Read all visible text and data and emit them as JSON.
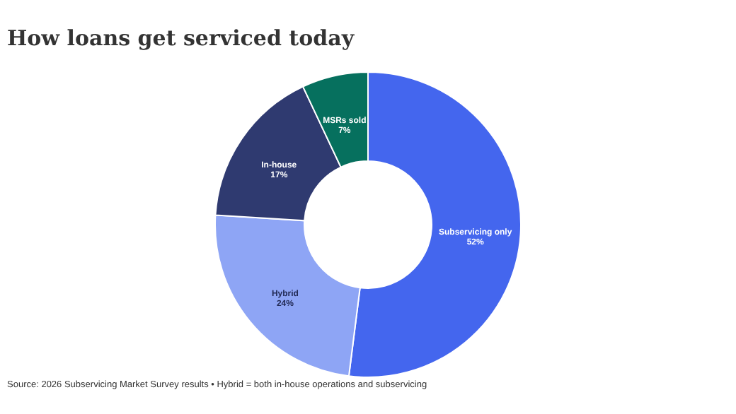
{
  "chart_data": {
    "type": "donut",
    "title": "How loans get serviced today",
    "categories": [
      "Subservicing only",
      "Hybrid",
      "In-house",
      "MSRs sold"
    ],
    "values": [
      52,
      24,
      17,
      7
    ],
    "value_labels": [
      "52%",
      "24%",
      "17%",
      "7%"
    ],
    "colors": [
      "#4466ee",
      "#8ea5f5",
      "#2f3a70",
      "#06705e"
    ],
    "legend": false,
    "annotations": [
      "Source: 2026 Subservicing Market Survey results • Hybrid = both in-house operations and subservicing"
    ]
  }
}
